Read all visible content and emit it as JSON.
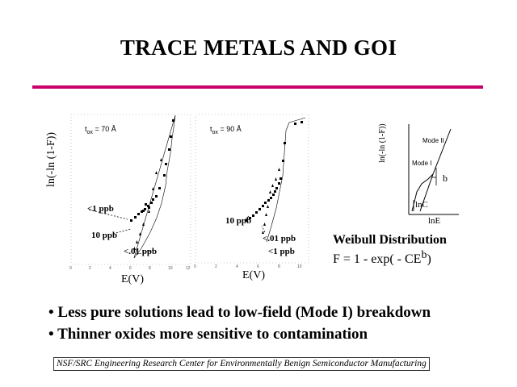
{
  "slide": {
    "title": "TRACE METALS AND GOI",
    "accent_color": "#c8006b"
  },
  "plot_left": {
    "tox_label": "t",
    "tox_sub": "ox",
    "tox_value": "= 70 Å",
    "y_label": "ln(-ln (1-F))",
    "x_label": "E(V)",
    "labels": [
      "<1 ppb",
      "10  ppb",
      "<.01  ppb"
    ]
  },
  "plot_middle": {
    "tox_label": "t",
    "tox_sub": "ox",
    "tox_value": "= 90 Å",
    "x_label": "E(V)",
    "labels": [
      "10  ppb",
      "<.01  ppb",
      "<1 ppb"
    ]
  },
  "weibull": {
    "y_label": "ln(-ln (1-F))",
    "x_label": "lnE",
    "mode2": "Mode II",
    "mode1": "Mode I",
    "slope_label": "b",
    "intercept_label": "lnC",
    "title": "Weibull Distribution",
    "equation_main": "F  =  1  -  exp( -  CE",
    "equation_exp": "b",
    "equation_close": ")"
  },
  "bullets": [
    "Less pure solutions lead to low-field (Mode I) breakdown",
    "Thinner oxides more sensitive to contamination"
  ],
  "footer": "NSF/SRC Engineering Research Center for Environmentally Benign Semiconductor Manufacturing"
}
